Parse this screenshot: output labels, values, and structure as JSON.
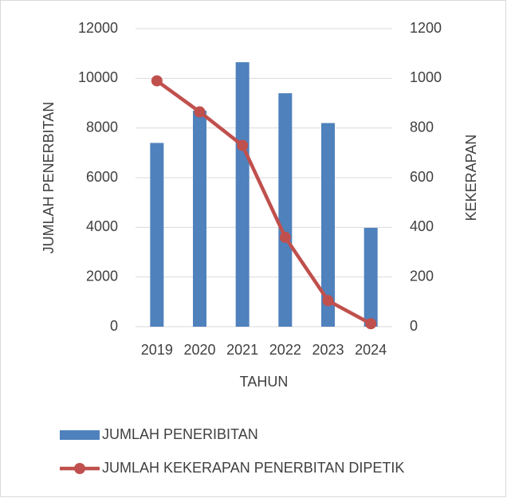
{
  "chart_data": {
    "type": "bar_line",
    "categories": [
      "2019",
      "2020",
      "2021",
      "2022",
      "2023",
      "2024"
    ],
    "series": [
      {
        "name": "JUMLAH PENERIBITAN",
        "color": "#4f81bd",
        "type": "bar",
        "values": [
          7400,
          8700,
          10650,
          9400,
          8200,
          3980
        ]
      },
      {
        "name": "JUMLAH KEKERAPAN PENERBITAN DIPETIK",
        "color": "#c0504d",
        "type": "line",
        "axis": "y2",
        "values": [
          990,
          865,
          730,
          360,
          105,
          12
        ]
      }
    ],
    "ylabel": "JUMLAH PENERBITAN",
    "y2label": "KEKERAPAN",
    "xlabel": "TAHUN",
    "ylim": [
      0,
      12000
    ],
    "yticks": [
      0,
      2000,
      4000,
      6000,
      8000,
      10000,
      12000
    ],
    "y2lim": [
      0,
      1200
    ],
    "y2ticks": [
      0,
      200,
      400,
      600,
      800,
      1000,
      1200
    ],
    "grid": true,
    "legend": "bottom"
  }
}
